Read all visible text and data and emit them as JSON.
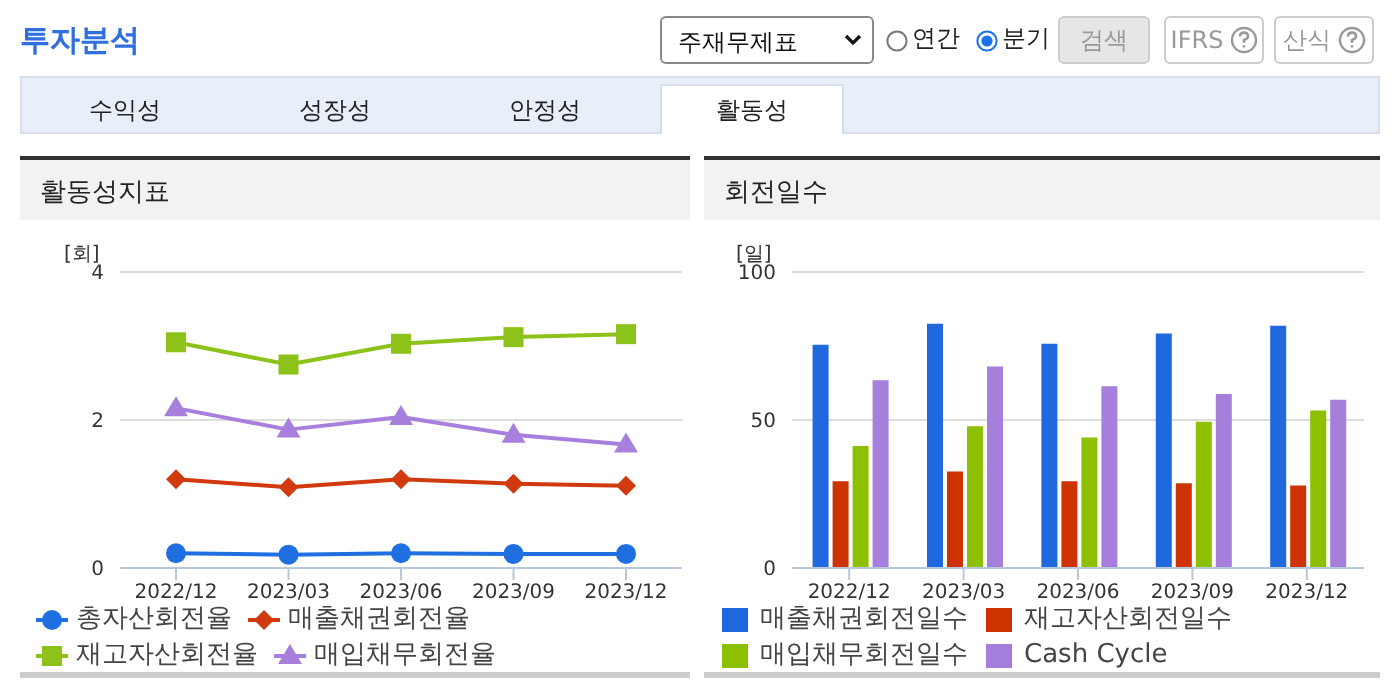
{
  "chart_data": [
    {
      "type": "other",
      "title": "투자분석",
      "annotations": [
        "주재무제표",
        "연간",
        "분기",
        "검색",
        "IFRS",
        "산식",
        "수익성",
        "성장성",
        "안정성",
        "활동성"
      ]
    },
    {
      "type": "line",
      "title": "활동성지표",
      "ylabel": "[회]",
      "categories": [
        "2022/12",
        "2023/03",
        "2023/06",
        "2023/09",
        "2023/12"
      ],
      "ylim": [
        0,
        4
      ],
      "yticks": [
        0,
        2,
        4
      ],
      "grid": "y",
      "legend": "bottom",
      "series": [
        {
          "name": "총자산회전율",
          "color": "#1f6fe0",
          "marker": "circle",
          "values": [
            0.2,
            0.18,
            0.2,
            0.19,
            0.19
          ]
        },
        {
          "name": "매출채권회전율",
          "color": "#d03a0e",
          "marker": "diamond",
          "values": [
            1.2,
            1.09,
            1.2,
            1.14,
            1.11
          ]
        },
        {
          "name": "재고자산회전율",
          "color": "#8cc21a",
          "marker": "square",
          "values": [
            3.05,
            2.75,
            3.03,
            3.12,
            3.16
          ]
        },
        {
          "name": "매입채무회전율",
          "color": "#a77fdc",
          "marker": "triangle",
          "values": [
            2.16,
            1.87,
            2.04,
            1.8,
            1.67
          ]
        }
      ]
    },
    {
      "type": "bar",
      "title": "회전일수",
      "ylabel": "[일]",
      "categories": [
        "2022/12",
        "2023/03",
        "2023/06",
        "2023/09",
        "2023/12"
      ],
      "ylim": [
        0,
        100
      ],
      "yticks": [
        0,
        50,
        100
      ],
      "grid": "y",
      "legend": "bottom",
      "series": [
        {
          "name": "매출채권회전일수",
          "color": "#1f68de",
          "values": [
            75.4,
            82.5,
            75.8,
            79.2,
            81.8
          ]
        },
        {
          "name": "재고자산회전일수",
          "color": "#cc3300",
          "values": [
            29.3,
            32.6,
            29.3,
            28.6,
            27.9
          ]
        },
        {
          "name": "매입채무회전일수",
          "color": "#8cc000",
          "values": [
            41.2,
            47.9,
            44.1,
            49.4,
            53.2
          ]
        },
        {
          "name": "Cash Cycle",
          "color": "#a67fdc",
          "values": [
            63.4,
            68.1,
            61.4,
            58.8,
            56.8
          ]
        }
      ]
    }
  ]
}
